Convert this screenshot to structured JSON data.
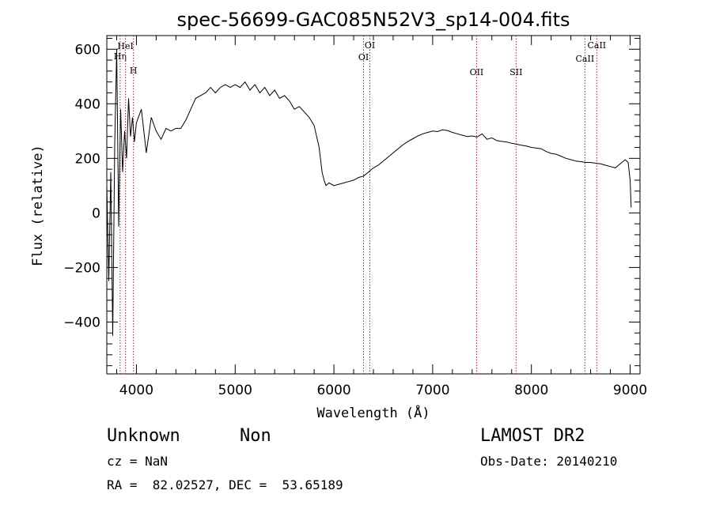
{
  "chart_data": {
    "type": "line",
    "title": "spec-56699-GAC085N52V3_sp14-004.fits",
    "xlabel": "Wavelength (Å)",
    "ylabel": "Flux (relative)",
    "xlim": [
      3700,
      9100
    ],
    "ylim": [
      -590,
      650
    ],
    "xticks": [
      4000,
      5000,
      6000,
      7000,
      8000,
      9000
    ],
    "yticks": [
      -400,
      -200,
      0,
      200,
      400,
      600
    ],
    "grid": false,
    "series": [
      {
        "x": [
          3700,
          3720,
          3740,
          3760,
          3780,
          3800,
          3820,
          3840,
          3860,
          3880,
          3900,
          3920,
          3940,
          3960,
          3980,
          4000,
          4050,
          4100,
          4150,
          4200,
          4250,
          4300,
          4350,
          4400,
          4450,
          4500,
          4550,
          4600,
          4650,
          4700,
          4750,
          4800,
          4850,
          4900,
          4950,
          5000,
          5050,
          5100,
          5150,
          5200,
          5250,
          5300,
          5350,
          5400,
          5450,
          5500,
          5550,
          5600,
          5650,
          5700,
          5750,
          5800,
          5850,
          5880,
          5900,
          5920,
          5950,
          6000,
          6050,
          6100,
          6150,
          6200,
          6250,
          6300,
          6350,
          6400,
          6450,
          6500,
          6550,
          6600,
          6650,
          6700,
          6750,
          6800,
          6850,
          6900,
          6950,
          7000,
          7050,
          7100,
          7150,
          7200,
          7250,
          7300,
          7350,
          7400,
          7450,
          7500,
          7550,
          7600,
          7650,
          7700,
          7750,
          7800,
          7850,
          7900,
          7950,
          8000,
          8050,
          8100,
          8150,
          8200,
          8250,
          8300,
          8350,
          8400,
          8450,
          8500,
          8550,
          8600,
          8650,
          8700,
          8750,
          8800,
          8850,
          8900,
          8950,
          8980,
          9000,
          9010
        ],
        "y": [
          100,
          -250,
          150,
          -450,
          250,
          600,
          -50,
          380,
          150,
          300,
          200,
          420,
          280,
          350,
          260,
          330,
          380,
          220,
          350,
          300,
          270,
          310,
          300,
          310,
          310,
          340,
          380,
          420,
          430,
          440,
          460,
          440,
          460,
          470,
          460,
          470,
          460,
          480,
          450,
          470,
          440,
          460,
          430,
          450,
          420,
          430,
          410,
          380,
          390,
          370,
          350,
          320,
          240,
          150,
          120,
          100,
          110,
          100,
          105,
          110,
          115,
          120,
          130,
          135,
          150,
          165,
          175,
          190,
          205,
          220,
          235,
          250,
          262,
          272,
          282,
          290,
          295,
          300,
          298,
          305,
          302,
          295,
          290,
          285,
          280,
          282,
          278,
          290,
          270,
          275,
          265,
          262,
          260,
          255,
          252,
          248,
          245,
          240,
          238,
          235,
          225,
          218,
          215,
          208,
          200,
          195,
          190,
          188,
          185,
          185,
          182,
          180,
          175,
          170,
          165,
          180,
          195,
          185,
          120,
          20
        ]
      }
    ],
    "spectral_lines": [
      {
        "label": "Hη",
        "x": 3835
      },
      {
        "label": "HeI",
        "x": 3889
      },
      {
        "label": "H",
        "x": 3970
      },
      {
        "label": "OI",
        "x": 6300
      },
      {
        "label": "OI",
        "x": 6364
      },
      {
        "label": "OII",
        "x": 7445
      },
      {
        "label": "SII",
        "x": 7845
      },
      {
        "label": "CaII",
        "x": 8542
      },
      {
        "label": "CaII",
        "x": 8662
      }
    ]
  },
  "info": {
    "class": "Unknown",
    "subclass": "Non",
    "survey": "LAMOST DR2",
    "cz": "cz = NaN",
    "obs_date": "Obs-Date: 20140210",
    "coords": "RA =  82.02527, DEC =  53.65189"
  }
}
